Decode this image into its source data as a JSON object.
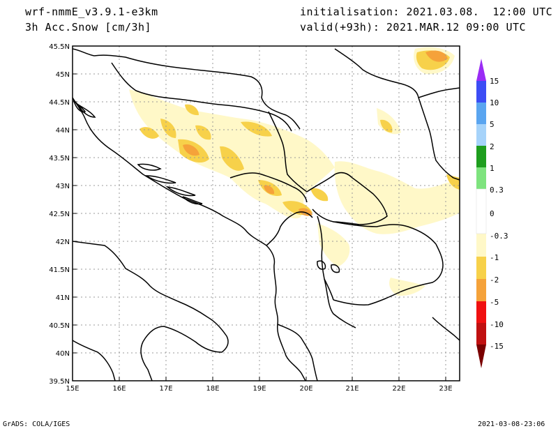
{
  "header": {
    "model": "wrf-nmmE_v3.9.1-e3km",
    "field": "3h Acc.Snow [cm/3h]",
    "init": "initialisation: 2021.03.08.  12:00 UTC",
    "valid": "valid(+93h): 2021.MAR.12 09:00 UTC"
  },
  "map": {
    "lat_range": [
      39.5,
      45.5
    ],
    "lon_range": [
      15,
      23.3
    ],
    "lat_labels": [
      "45.5N",
      "45N",
      "44.5N",
      "44N",
      "43.5N",
      "43N",
      "42.5N",
      "42N",
      "41.5N",
      "41N",
      "40.5N",
      "40N",
      "39.5N"
    ],
    "lon_labels": [
      "15E",
      "16E",
      "17E",
      "18E",
      "19E",
      "20E",
      "21E",
      "22E",
      "23E"
    ],
    "grid": "dotted",
    "fill_colors": {
      "light": "#fff8c8",
      "mid": "#f7d14a",
      "orange": "#f5a23a"
    }
  },
  "legend": {
    "labels": [
      "15",
      "10",
      "5",
      "2",
      "1",
      "0.3",
      "0",
      "-0.3",
      "-1",
      "-2",
      "-5",
      "-10",
      "-15"
    ],
    "colors": [
      "#7b3cf5",
      "#3c4df5",
      "#5aa5f0",
      "#a6d3fa",
      "#1e9e1e",
      "#7ee37e",
      "#ffffff",
      "#fff8c8",
      "#f7d14a",
      "#f5a23a",
      "#f01010",
      "#c01010",
      "#8b0000"
    ],
    "top_arrow_color": "#9a2cf5",
    "bottom_arrow_color": "#7a0000"
  },
  "footer": {
    "left": "GrADS: COLA/IGES",
    "right": "2021-03-08-23:06"
  }
}
